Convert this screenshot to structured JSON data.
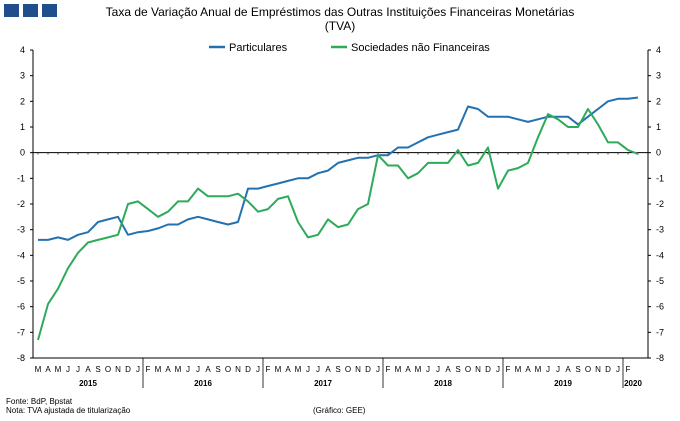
{
  "header": {
    "title_line1": "Taxa de Variação Anual de Empréstimos das Outras Instituições Financeiras Monetárias",
    "title_line2": "(TVA)"
  },
  "footer": {
    "source": "Fonte: BdP, Bpstat",
    "note": "Nota: TVA ajustada de titularização",
    "credit": "(Gráfico: GEE)"
  },
  "chart_data": {
    "type": "line",
    "title": "Taxa de Variação Anual de Empréstimos das Outras Instituições Financeiras Monetárias (TVA)",
    "x": [
      "2015-02",
      "2015-03",
      "2015-04",
      "2015-05",
      "2015-06",
      "2015-07",
      "2015-08",
      "2015-09",
      "2015-10",
      "2015-11",
      "2015-12",
      "2016-01",
      "2016-02",
      "2016-03",
      "2016-04",
      "2016-05",
      "2016-06",
      "2016-07",
      "2016-08",
      "2016-09",
      "2016-10",
      "2016-11",
      "2016-12",
      "2017-01",
      "2017-02",
      "2017-03",
      "2017-04",
      "2017-05",
      "2017-06",
      "2017-07",
      "2017-08",
      "2017-09",
      "2017-10",
      "2017-11",
      "2017-12",
      "2018-01",
      "2018-02",
      "2018-03",
      "2018-04",
      "2018-05",
      "2018-06",
      "2018-07",
      "2018-08",
      "2018-09",
      "2018-10",
      "2018-11",
      "2018-12",
      "2019-01",
      "2019-02",
      "2019-03",
      "2019-04",
      "2019-05",
      "2019-06",
      "2019-07",
      "2019-08",
      "2019-09",
      "2019-10",
      "2019-11",
      "2019-12",
      "2020-01",
      "2020-02"
    ],
    "tick_labels": [
      "M",
      "A",
      "M",
      "J",
      "J",
      "A",
      "S",
      "O",
      "N",
      "D",
      "J",
      "F",
      "M",
      "A",
      "M",
      "J",
      "J",
      "A",
      "S",
      "O",
      "N",
      "D",
      "J",
      "F",
      "M",
      "A",
      "M",
      "J",
      "J",
      "A",
      "S",
      "O",
      "N",
      "D",
      "J",
      "F",
      "M",
      "A",
      "M",
      "J",
      "J",
      "A",
      "S",
      "O",
      "N",
      "D",
      "J",
      "F",
      "M",
      "A",
      "M",
      "J",
      "J",
      "A",
      "S",
      "O",
      "N",
      "D",
      "J",
      "F"
    ],
    "year_labels": [
      {
        "label": "2015",
        "from": 0,
        "to": 10
      },
      {
        "label": "2016",
        "from": 11,
        "to": 22
      },
      {
        "label": "2017",
        "from": 23,
        "to": 34
      },
      {
        "label": "2018",
        "from": 35,
        "to": 46
      },
      {
        "label": "2019",
        "from": 47,
        "to": 58
      },
      {
        "label": "2020",
        "from": 59,
        "to": 60
      }
    ],
    "ylim": [
      -8,
      4
    ],
    "yticks": [
      4,
      3,
      2,
      1,
      0,
      -1,
      -2,
      -3,
      -4,
      -5,
      -6,
      -7,
      -8
    ],
    "legend_position": "top",
    "series": [
      {
        "name": "Particulares",
        "color": "#2471b0",
        "values": [
          -3.4,
          -3.4,
          -3.3,
          -3.4,
          -3.2,
          -3.1,
          -2.7,
          -2.6,
          -2.5,
          -3.2,
          -3.1,
          -3.05,
          -2.95,
          -2.8,
          -2.8,
          -2.6,
          -2.5,
          -2.6,
          -2.7,
          -2.8,
          -2.7,
          -1.4,
          -1.4,
          -1.3,
          -1.2,
          -1.1,
          -1.0,
          -1.0,
          -0.8,
          -0.7,
          -0.4,
          -0.3,
          -0.2,
          -0.2,
          -0.1,
          -0.1,
          0.2,
          0.2,
          0.4,
          0.6,
          0.7,
          0.8,
          0.9,
          1.8,
          1.7,
          1.4,
          1.4,
          1.4,
          1.3,
          1.2,
          1.3,
          1.4,
          1.4,
          1.4,
          1.1,
          1.4,
          1.7,
          2.0,
          2.1,
          2.1,
          2.15
        ]
      },
      {
        "name": "Sociedades não Financeiras",
        "color": "#2eaa5b",
        "values": [
          -7.3,
          -5.9,
          -5.3,
          -4.5,
          -3.9,
          -3.5,
          -3.4,
          -3.3,
          -3.2,
          -2.0,
          -1.9,
          -2.2,
          -2.5,
          -2.3,
          -1.9,
          -1.9,
          -1.4,
          -1.7,
          -1.7,
          -1.7,
          -1.6,
          -1.9,
          -2.3,
          -2.2,
          -1.8,
          -1.7,
          -2.7,
          -3.3,
          -3.2,
          -2.6,
          -2.9,
          -2.8,
          -2.2,
          -2.0,
          -0.1,
          -0.5,
          -0.5,
          -1.0,
          -0.8,
          -0.4,
          -0.4,
          -0.4,
          0.1,
          -0.5,
          -0.4,
          0.2,
          -1.4,
          -0.7,
          -0.6,
          -0.4,
          0.6,
          1.5,
          1.3,
          1.0,
          1.0,
          1.7,
          1.1,
          0.4,
          0.4,
          0.1,
          -0.05
        ]
      }
    ]
  }
}
